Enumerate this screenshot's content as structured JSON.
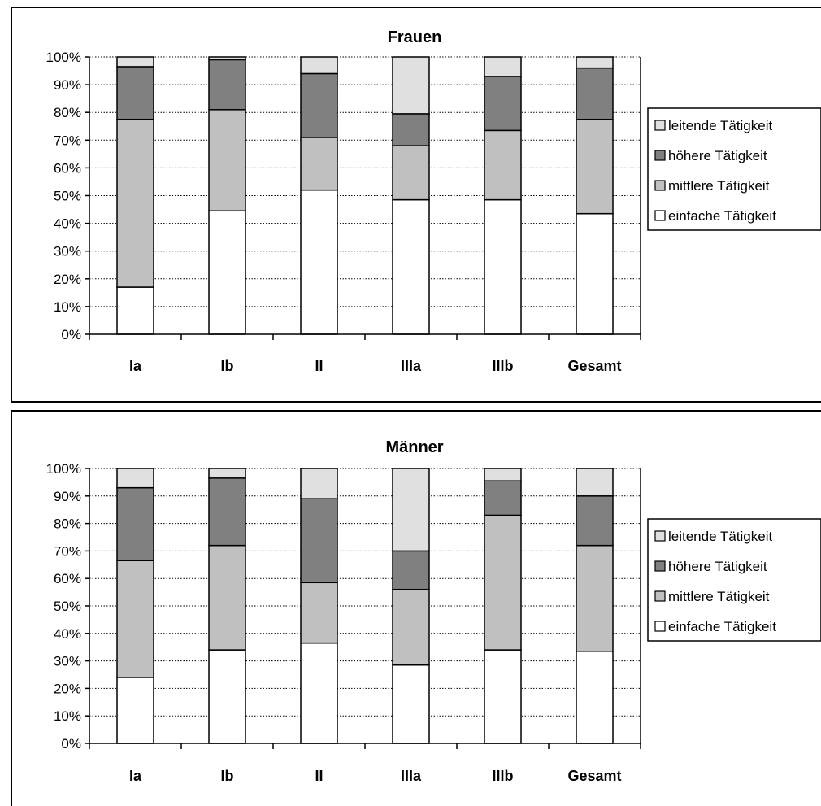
{
  "chart_data": [
    {
      "type": "bar",
      "stacked": true,
      "percent": true,
      "title": "Frauen",
      "categories": [
        "Ia",
        "Ib",
        "II",
        "IIIa",
        "IIIb",
        "Gesamt"
      ],
      "series": [
        {
          "name": "einfache Tätigkeit",
          "color": "#ffffff",
          "values": [
            17,
            44.5,
            52,
            48.5,
            48.5,
            43.5
          ]
        },
        {
          "name": "mittlere Tätigkeit",
          "color": "#c0c0c0",
          "values": [
            60.5,
            36.5,
            19,
            19.5,
            25,
            34
          ]
        },
        {
          "name": "höhere Tätigkeit",
          "color": "#808080",
          "values": [
            19,
            18,
            23,
            11.5,
            19.5,
            18.5
          ]
        },
        {
          "name": "leitende Tätigkeit",
          "color": "#e0e0e0",
          "values": [
            3.5,
            1,
            6,
            20.5,
            7,
            4
          ]
        }
      ],
      "y_ticks": [
        "0%",
        "10%",
        "20%",
        "30%",
        "40%",
        "50%",
        "60%",
        "70%",
        "80%",
        "90%",
        "100%"
      ],
      "ylim": [
        0,
        100
      ],
      "grid": "dotted horizontal",
      "legend_position": "right",
      "legend_order": [
        "leitende Tätigkeit",
        "höhere Tätigkeit",
        "mittlere Tätigkeit",
        "einfache Tätigkeit"
      ]
    },
    {
      "type": "bar",
      "stacked": true,
      "percent": true,
      "title": "Männer",
      "categories": [
        "Ia",
        "Ib",
        "II",
        "IIIa",
        "IIIb",
        "Gesamt"
      ],
      "series": [
        {
          "name": "einfache Tätigkeit",
          "color": "#ffffff",
          "values": [
            24,
            34,
            36.5,
            28.5,
            34,
            33.5
          ]
        },
        {
          "name": "mittlere Tätigkeit",
          "color": "#c0c0c0",
          "values": [
            42.5,
            38,
            22,
            27.5,
            49,
            38.5
          ]
        },
        {
          "name": "höhere Tätigkeit",
          "color": "#808080",
          "values": [
            26.5,
            24.5,
            30.5,
            14,
            12.5,
            18
          ]
        },
        {
          "name": "leitende Tätigkeit",
          "color": "#e0e0e0",
          "values": [
            7,
            3.5,
            11,
            30,
            4.5,
            10
          ]
        }
      ],
      "y_ticks": [
        "0%",
        "10%",
        "20%",
        "30%",
        "40%",
        "50%",
        "60%",
        "70%",
        "80%",
        "90%",
        "100%"
      ],
      "ylim": [
        0,
        100
      ],
      "grid": "dotted horizontal",
      "legend_position": "right",
      "legend_order": [
        "leitende Tätigkeit",
        "höhere Tätigkeit",
        "mittlere Tätigkeit",
        "einfache Tätigkeit"
      ]
    }
  ]
}
